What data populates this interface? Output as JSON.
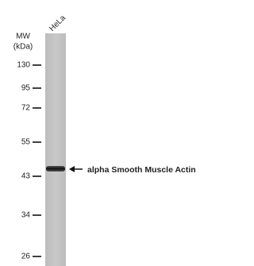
{
  "header": {
    "unit_line1": "MW",
    "unit_line2": "(kDa)",
    "lane": "HeLa"
  },
  "markers": [
    130,
    95,
    72,
    55,
    43,
    34,
    26
  ],
  "band": {
    "label": "alpha Smooth Muscle Actin"
  }
}
